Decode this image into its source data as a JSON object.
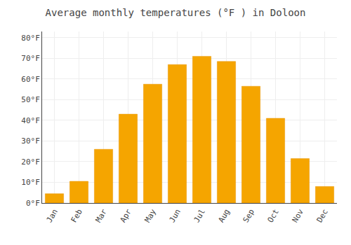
{
  "chart_data": {
    "type": "bar",
    "title": "Average monthly temperatures (°F ) in Doloon",
    "categories": [
      "Jan",
      "Feb",
      "Mar",
      "Apr",
      "May",
      "Jun",
      "Jul",
      "Aug",
      "Sep",
      "Oct",
      "Nov",
      "Dec"
    ],
    "values": [
      4.5,
      10.5,
      26.0,
      43.0,
      57.5,
      67.0,
      71.0,
      68.5,
      56.5,
      41.0,
      21.5,
      8.0
    ],
    "color": "#F5A500",
    "ylim": [
      0,
      83
    ],
    "yticks": [
      {
        "value": 0,
        "label": "0°F"
      },
      {
        "value": 10,
        "label": "10°F"
      },
      {
        "value": 20,
        "label": "20°F"
      },
      {
        "value": 30,
        "label": "30°F"
      },
      {
        "value": 40,
        "label": "40°F"
      },
      {
        "value": 50,
        "label": "50°F"
      },
      {
        "value": 60,
        "label": "60°F"
      },
      {
        "value": 70,
        "label": "70°F"
      },
      {
        "value": 80,
        "label": "80°F"
      }
    ],
    "grid": true
  }
}
